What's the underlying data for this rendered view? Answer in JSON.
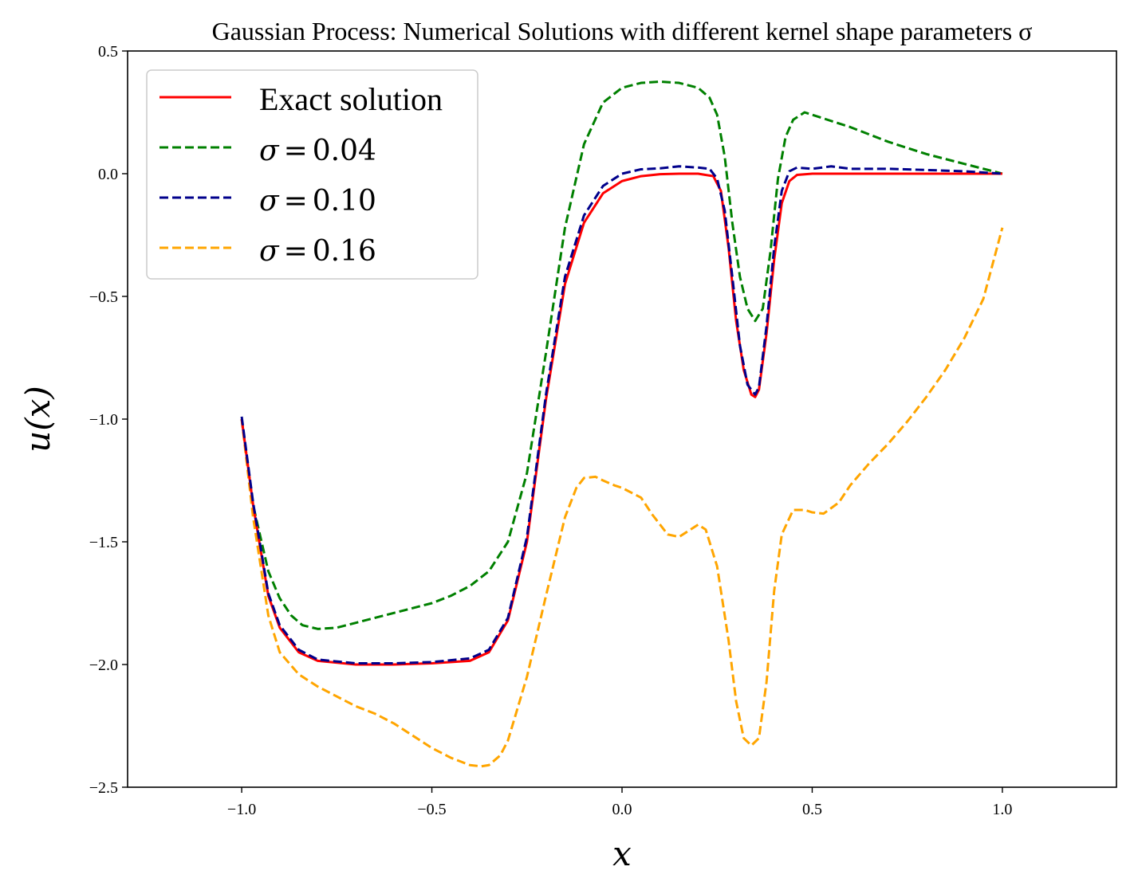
{
  "chart_data": {
    "type": "line",
    "title": "Gaussian Process: Numerical Solutions with different kernel shape parameters σ",
    "xlabel": "x",
    "ylabel": "u(x)",
    "xlim": [
      -1.3,
      1.3
    ],
    "ylim": [
      -2.5,
      0.5
    ],
    "xticks": [
      -1.0,
      -0.5,
      0.0,
      0.5,
      1.0
    ],
    "xtick_labels": [
      "−1.0",
      "−0.5",
      "0.0",
      "0.5",
      "1.0"
    ],
    "yticks": [
      0.5,
      0.0,
      -0.5,
      -1.0,
      -1.5,
      -2.0,
      -2.5
    ],
    "ytick_labels": [
      "0.5",
      "0.0",
      "−0.5",
      "−1.0",
      "−1.5",
      "−2.0",
      "−2.5"
    ],
    "grid": false,
    "legend_position": "top-left",
    "series": [
      {
        "name": "Exact solution",
        "color": "#ff0000",
        "style": "solid",
        "x": [
          -1.0,
          -0.97,
          -0.93,
          -0.9,
          -0.85,
          -0.8,
          -0.7,
          -0.6,
          -0.5,
          -0.4,
          -0.35,
          -0.3,
          -0.25,
          -0.2,
          -0.15,
          -0.1,
          -0.05,
          0.0,
          0.05,
          0.1,
          0.15,
          0.2,
          0.24,
          0.26,
          0.28,
          0.3,
          0.32,
          0.34,
          0.35,
          0.36,
          0.38,
          0.4,
          0.42,
          0.44,
          0.46,
          0.5,
          0.6,
          0.7,
          0.8,
          0.9,
          1.0
        ],
        "y": [
          -1.0,
          -1.35,
          -1.72,
          -1.85,
          -1.95,
          -1.985,
          -2.0,
          -2.0,
          -1.995,
          -1.985,
          -1.95,
          -1.82,
          -1.5,
          -0.92,
          -0.45,
          -0.2,
          -0.08,
          -0.03,
          -0.01,
          -0.002,
          0.0,
          0.0,
          -0.01,
          -0.07,
          -0.3,
          -0.6,
          -0.8,
          -0.9,
          -0.91,
          -0.88,
          -0.65,
          -0.35,
          -0.12,
          -0.03,
          -0.005,
          0.0,
          0.0,
          0.0,
          0.0,
          0.0,
          0.0
        ]
      },
      {
        "name": "σ = 0.04",
        "legend_label": "0.04",
        "color": "#008000",
        "style": "dashed",
        "x": [
          -1.0,
          -0.97,
          -0.93,
          -0.9,
          -0.87,
          -0.84,
          -0.8,
          -0.75,
          -0.7,
          -0.6,
          -0.5,
          -0.45,
          -0.4,
          -0.35,
          -0.3,
          -0.25,
          -0.2,
          -0.15,
          -0.1,
          -0.05,
          0.0,
          0.05,
          0.1,
          0.15,
          0.2,
          0.23,
          0.25,
          0.27,
          0.29,
          0.31,
          0.33,
          0.35,
          0.37,
          0.39,
          0.41,
          0.43,
          0.45,
          0.48,
          0.5,
          0.6,
          0.7,
          0.8,
          0.9,
          1.0
        ],
        "y": [
          -1.0,
          -1.35,
          -1.62,
          -1.73,
          -1.8,
          -1.84,
          -1.855,
          -1.85,
          -1.83,
          -1.79,
          -1.75,
          -1.72,
          -1.68,
          -1.62,
          -1.5,
          -1.22,
          -0.73,
          -0.22,
          0.12,
          0.29,
          0.35,
          0.37,
          0.375,
          0.37,
          0.35,
          0.31,
          0.24,
          0.07,
          -0.2,
          -0.42,
          -0.55,
          -0.6,
          -0.55,
          -0.32,
          -0.02,
          0.15,
          0.22,
          0.25,
          0.24,
          0.19,
          0.13,
          0.08,
          0.04,
          0.0
        ]
      },
      {
        "name": "σ = 0.10",
        "legend_label": "0.10",
        "color": "#00008b",
        "style": "dashed",
        "x": [
          -1.0,
          -0.97,
          -0.93,
          -0.9,
          -0.85,
          -0.8,
          -0.7,
          -0.6,
          -0.5,
          -0.4,
          -0.35,
          -0.3,
          -0.25,
          -0.2,
          -0.15,
          -0.1,
          -0.05,
          0.0,
          0.05,
          0.1,
          0.15,
          0.2,
          0.23,
          0.25,
          0.27,
          0.29,
          0.31,
          0.33,
          0.35,
          0.36,
          0.38,
          0.4,
          0.42,
          0.44,
          0.46,
          0.5,
          0.55,
          0.6,
          0.7,
          0.8,
          0.9,
          1.0
        ],
        "y": [
          -0.99,
          -1.34,
          -1.71,
          -1.84,
          -1.94,
          -1.98,
          -1.995,
          -1.995,
          -1.99,
          -1.975,
          -1.94,
          -1.81,
          -1.48,
          -0.9,
          -0.42,
          -0.17,
          -0.05,
          0.0,
          0.018,
          0.022,
          0.03,
          0.025,
          0.02,
          -0.02,
          -0.15,
          -0.42,
          -0.7,
          -0.86,
          -0.9,
          -0.87,
          -0.62,
          -0.3,
          -0.07,
          0.01,
          0.025,
          0.02,
          0.03,
          0.02,
          0.02,
          0.015,
          0.01,
          0.0
        ]
      },
      {
        "name": "σ = 0.16",
        "legend_label": "0.16",
        "color": "#ffa500",
        "style": "dashed",
        "x": [
          -1.0,
          -0.97,
          -0.93,
          -0.9,
          -0.85,
          -0.8,
          -0.75,
          -0.7,
          -0.65,
          -0.6,
          -0.55,
          -0.5,
          -0.45,
          -0.4,
          -0.37,
          -0.35,
          -0.32,
          -0.3,
          -0.25,
          -0.2,
          -0.15,
          -0.12,
          -0.1,
          -0.07,
          -0.05,
          -0.02,
          0.0,
          0.05,
          0.08,
          0.12,
          0.15,
          0.17,
          0.2,
          0.22,
          0.25,
          0.28,
          0.3,
          0.32,
          0.34,
          0.36,
          0.38,
          0.4,
          0.42,
          0.45,
          0.48,
          0.5,
          0.53,
          0.57,
          0.6,
          0.65,
          0.7,
          0.75,
          0.8,
          0.85,
          0.9,
          0.95,
          1.0
        ],
        "y": [
          -1.0,
          -1.4,
          -1.8,
          -1.95,
          -2.04,
          -2.09,
          -2.13,
          -2.17,
          -2.2,
          -2.24,
          -2.29,
          -2.34,
          -2.38,
          -2.41,
          -2.415,
          -2.41,
          -2.37,
          -2.31,
          -2.05,
          -1.72,
          -1.4,
          -1.28,
          -1.24,
          -1.235,
          -1.25,
          -1.27,
          -1.28,
          -1.32,
          -1.39,
          -1.47,
          -1.48,
          -1.46,
          -1.43,
          -1.45,
          -1.6,
          -1.9,
          -2.15,
          -2.3,
          -2.33,
          -2.3,
          -2.07,
          -1.7,
          -1.47,
          -1.37,
          -1.37,
          -1.38,
          -1.385,
          -1.34,
          -1.27,
          -1.18,
          -1.1,
          -1.01,
          -0.91,
          -0.8,
          -0.67,
          -0.51,
          -0.22
        ]
      }
    ]
  }
}
